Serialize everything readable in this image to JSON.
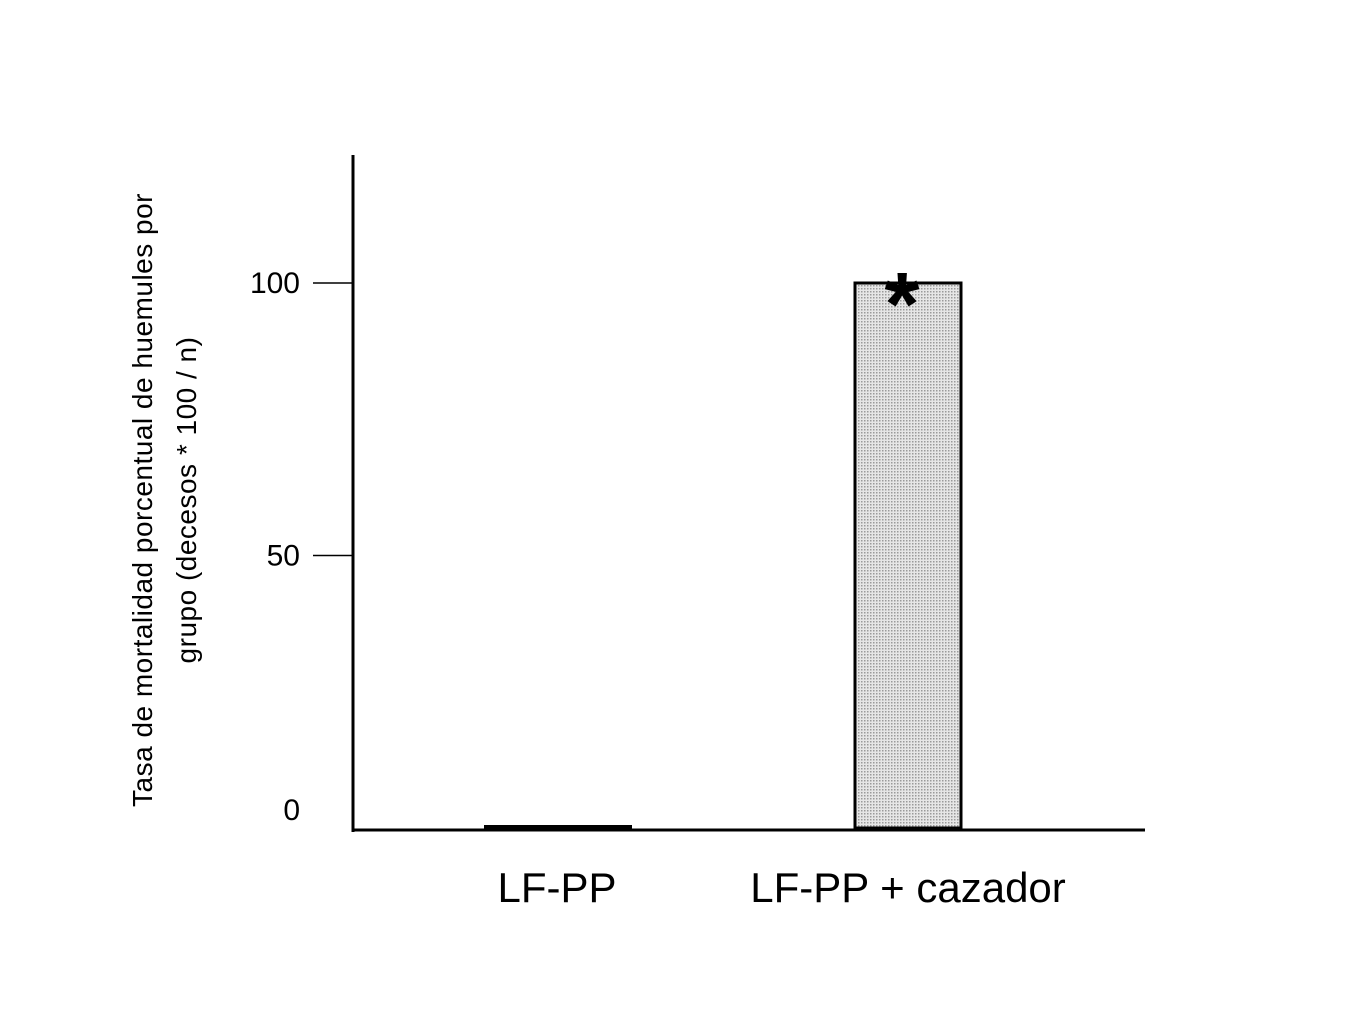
{
  "chart_data": {
    "type": "bar",
    "categories": [
      "LF-PP",
      "LF-PP + cazador"
    ],
    "values": [
      0,
      100
    ],
    "title": "",
    "xlabel": "",
    "ylabel_lines": [
      "Tasa de mortalidad porcentual de huemules por",
      "grupo (decesos * 100 / n)"
    ],
    "ylim": [
      0,
      120
    ],
    "yticks": [
      0,
      50,
      100
    ],
    "ytick_labels": [
      "0",
      "50",
      "100"
    ],
    "grid": false,
    "legend": "none",
    "annotations": [
      {
        "category": "LF-PP + cazador",
        "text": "*"
      }
    ],
    "colors": {
      "axis": "#000000",
      "bar_fill": "#cfcfcf",
      "bar_stroke": "#000000"
    }
  }
}
